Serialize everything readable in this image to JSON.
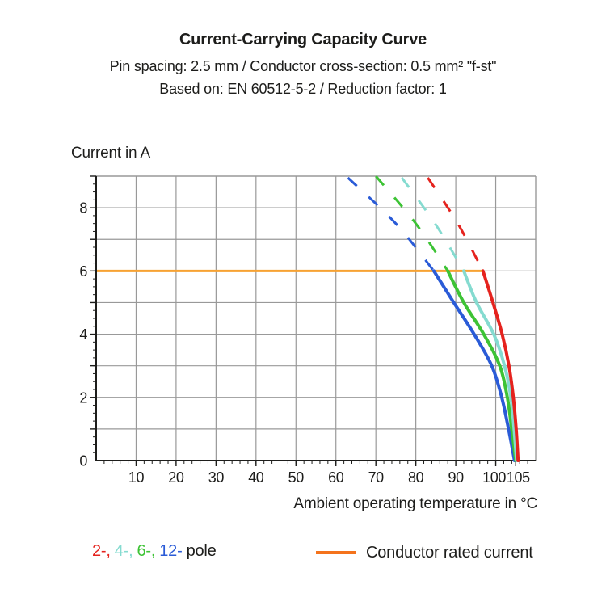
{
  "page": {
    "title": "Current-Carrying Capacity Curve",
    "subtitle1": "Pin spacing: 2.5 mm / Conductor cross-section: 0.5 mm² \"f-st\"",
    "subtitle2": "Based on: EN 60512-5-2 / Reduction factor: 1"
  },
  "chart_data": {
    "type": "line",
    "title": "Current-Carrying Capacity Curve",
    "xlabel": "Ambient operating temperature in °C",
    "ylabel": "Current in A",
    "xlim": [
      0,
      110
    ],
    "ylim": [
      0,
      9
    ],
    "grid": true,
    "x_grid_step": 10,
    "y_grid_step": 1,
    "x_minor_tick_step": 2,
    "y_minor_tick_step": 0.25,
    "x_tick_labels": [
      "10",
      "20",
      "30",
      "40",
      "50",
      "60",
      "70",
      "80",
      "90",
      "100",
      "105"
    ],
    "x_tick_values": [
      10,
      20,
      30,
      40,
      50,
      60,
      70,
      80,
      90,
      100,
      105
    ],
    "y_tick_labels": [
      "0",
      "2",
      "4",
      "6",
      "8"
    ],
    "y_tick_values": [
      0,
      2,
      4,
      6,
      8
    ],
    "grid_color": "#999999",
    "axis_color": "#1d1d1b",
    "series": [
      {
        "name": "2-pole",
        "color": "#E5231E",
        "solid": [
          [
            96.8,
            6
          ],
          [
            99.3,
            5
          ],
          [
            101.6,
            4
          ],
          [
            103.3,
            3
          ],
          [
            104.4,
            2
          ],
          [
            105.1,
            1
          ],
          [
            105.6,
            0
          ]
        ],
        "dashed": [
          [
            83,
            8.95
          ],
          [
            90.5,
            7.5
          ],
          [
            96.8,
            6
          ]
        ]
      },
      {
        "name": "4-pole",
        "color": "#85DBD0",
        "solid": [
          [
            92,
            6
          ],
          [
            95.2,
            5
          ],
          [
            99.5,
            4
          ],
          [
            102.2,
            3
          ],
          [
            103.8,
            2
          ],
          [
            104.6,
            1
          ],
          [
            105.2,
            0
          ]
        ],
        "dashed": [
          [
            76.5,
            8.95
          ],
          [
            84.8,
            7.5
          ],
          [
            92,
            6
          ]
        ]
      },
      {
        "name": "6-pole",
        "color": "#3DC335",
        "solid": [
          [
            88,
            6
          ],
          [
            92,
            5
          ],
          [
            97,
            4
          ],
          [
            101,
            3
          ],
          [
            102.9,
            2
          ],
          [
            104,
            1
          ],
          [
            105,
            0
          ]
        ],
        "dashed": [
          [
            70,
            9
          ],
          [
            80,
            7.5
          ],
          [
            88,
            6
          ]
        ]
      },
      {
        "name": "12-pole",
        "color": "#2A5BD7",
        "solid": [
          [
            84.5,
            6
          ],
          [
            89.5,
            5
          ],
          [
            94.6,
            4
          ],
          [
            99,
            3
          ],
          [
            101.5,
            2
          ],
          [
            103.2,
            1
          ],
          [
            104.7,
            0
          ]
        ],
        "dashed": [
          [
            63,
            8.95
          ],
          [
            75,
            7.5
          ],
          [
            84.5,
            6
          ]
        ]
      }
    ],
    "rated_current": {
      "label": "Conductor rated current",
      "value_a": 6,
      "x_start": 0,
      "x_end": 96.8,
      "color": "#F7A233"
    }
  },
  "legend": {
    "pole_parts": [
      {
        "text": "2-,",
        "color": "#E5231E"
      },
      {
        "text": "4-,",
        "color": "#85DBD0"
      },
      {
        "text": "6-,",
        "color": "#3DC335"
      },
      {
        "text": "12-",
        "color": "#2A5BD7"
      },
      {
        "text": "pole",
        "color": "#1d1d1b"
      }
    ],
    "rated_label": "Conductor rated current",
    "rated_swatch_color": "#F4731C"
  }
}
